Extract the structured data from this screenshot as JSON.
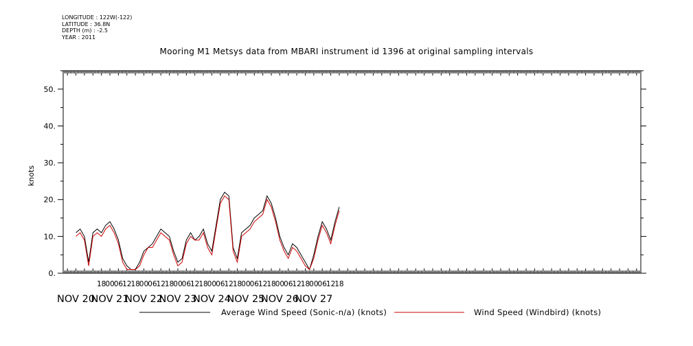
{
  "header": {
    "longitude": "LONGITUDE : 122W(-122)",
    "latitude": "LATITUDE : 36.8N",
    "depth": "DEPTH (m) : -2.5",
    "year": "YEAR : 2011"
  },
  "chart_data": {
    "type": "line",
    "title": "Mooring M1 Metsys data from MBARI instrument id 1396 at original sampling intervals",
    "ylabel": "knots",
    "xlabel": "",
    "ylim": [
      0,
      55
    ],
    "xlim_hours": [
      -9,
      399
    ],
    "y_ticks": [
      0,
      10,
      20,
      30,
      40,
      50
    ],
    "y_tick_labels": [
      "0.",
      "10.",
      "20.",
      "30.",
      "40.",
      "50."
    ],
    "hour_ticks": [
      {
        "t": 18,
        "label": "18"
      },
      {
        "t": 24,
        "label": "00"
      },
      {
        "t": 30,
        "label": "06"
      },
      {
        "t": 36,
        "label": "12"
      },
      {
        "t": 42,
        "label": "18"
      },
      {
        "t": 48,
        "label": "00"
      },
      {
        "t": 54,
        "label": "06"
      },
      {
        "t": 60,
        "label": "12"
      },
      {
        "t": 66,
        "label": "18"
      },
      {
        "t": 72,
        "label": "00"
      },
      {
        "t": 78,
        "label": "06"
      },
      {
        "t": 84,
        "label": "12"
      },
      {
        "t": 90,
        "label": "18"
      },
      {
        "t": 96,
        "label": "00"
      },
      {
        "t": 102,
        "label": "06"
      },
      {
        "t": 108,
        "label": "12"
      },
      {
        "t": 114,
        "label": "18"
      },
      {
        "t": 120,
        "label": "00"
      },
      {
        "t": 126,
        "label": "06"
      },
      {
        "t": 132,
        "label": "12"
      },
      {
        "t": 138,
        "label": "18"
      },
      {
        "t": 144,
        "label": "00"
      },
      {
        "t": 150,
        "label": "06"
      },
      {
        "t": 156,
        "label": "12"
      },
      {
        "t": 162,
        "label": "18"
      },
      {
        "t": 168,
        "label": "00"
      },
      {
        "t": 174,
        "label": "06"
      },
      {
        "t": 180,
        "label": "12"
      },
      {
        "t": 186,
        "label": "18"
      }
    ],
    "date_labels": [
      {
        "t": 0,
        "label": "NOV 20"
      },
      {
        "t": 24,
        "label": "NOV 21"
      },
      {
        "t": 48,
        "label": "NOV 22"
      },
      {
        "t": 72,
        "label": "NOV 23"
      },
      {
        "t": 96,
        "label": "NOV 24"
      },
      {
        "t": 120,
        "label": "NOV 25"
      },
      {
        "t": 144,
        "label": "NOV 26"
      },
      {
        "t": 168,
        "label": "NOV 27"
      }
    ],
    "series": [
      {
        "name": "Average Wind Speed (Sonic-n/a) (knots)",
        "color": "#000000",
        "x_hours": [
          0,
          3,
          6,
          9,
          12,
          15,
          18,
          21,
          24,
          27,
          30,
          33,
          36,
          39,
          42,
          45,
          48,
          51,
          54,
          57,
          60,
          63,
          66,
          69,
          72,
          75,
          78,
          81,
          84,
          87,
          90,
          93,
          96,
          99,
          102,
          105,
          108,
          111,
          114,
          117,
          120,
          123,
          126,
          129,
          132,
          135,
          138,
          141,
          144,
          147,
          150,
          153,
          156,
          159,
          162,
          165,
          168,
          171,
          174,
          177,
          180,
          183,
          186
        ],
        "values": [
          11,
          12,
          10,
          3,
          11,
          12,
          11,
          13,
          14,
          12,
          9,
          4,
          2,
          1,
          1,
          3,
          6,
          7,
          8,
          10,
          12,
          11,
          10,
          6,
          3,
          4,
          9,
          11,
          9,
          10,
          12,
          8,
          6,
          13,
          20,
          22,
          21,
          7,
          4,
          11,
          12,
          13,
          15,
          16,
          17,
          21,
          19,
          15,
          10,
          7,
          5,
          8,
          7,
          5,
          3,
          1,
          5,
          10,
          14,
          12,
          9,
          14,
          18
        ]
      },
      {
        "name": "Wind Speed (Windbird) (knots)",
        "color": "#cc0000",
        "x_hours": [
          0,
          3,
          6,
          9,
          12,
          15,
          18,
          21,
          24,
          27,
          30,
          33,
          36,
          39,
          42,
          45,
          48,
          51,
          54,
          57,
          60,
          63,
          66,
          69,
          72,
          75,
          78,
          81,
          84,
          87,
          90,
          93,
          96,
          99,
          102,
          105,
          108,
          111,
          114,
          117,
          120,
          123,
          126,
          129,
          132,
          135,
          138,
          141,
          144,
          147,
          150,
          153,
          156,
          159,
          162,
          165,
          168,
          171,
          174,
          177,
          180,
          183,
          186
        ],
        "values": [
          10,
          11,
          9,
          2,
          10,
          11,
          10,
          12,
          13,
          11,
          8,
          3,
          1,
          1,
          1,
          2,
          5,
          7,
          7,
          9,
          11,
          10,
          9,
          5,
          2,
          3,
          8,
          10,
          9,
          9,
          11,
          7,
          5,
          12,
          19,
          21,
          20,
          6,
          3,
          10,
          11,
          12,
          14,
          15,
          16,
          20,
          18,
          14,
          9,
          6,
          4,
          7,
          6,
          4,
          2,
          1,
          4,
          9,
          13,
          11,
          8,
          13,
          17
        ]
      }
    ],
    "legend_position": "bottom"
  }
}
